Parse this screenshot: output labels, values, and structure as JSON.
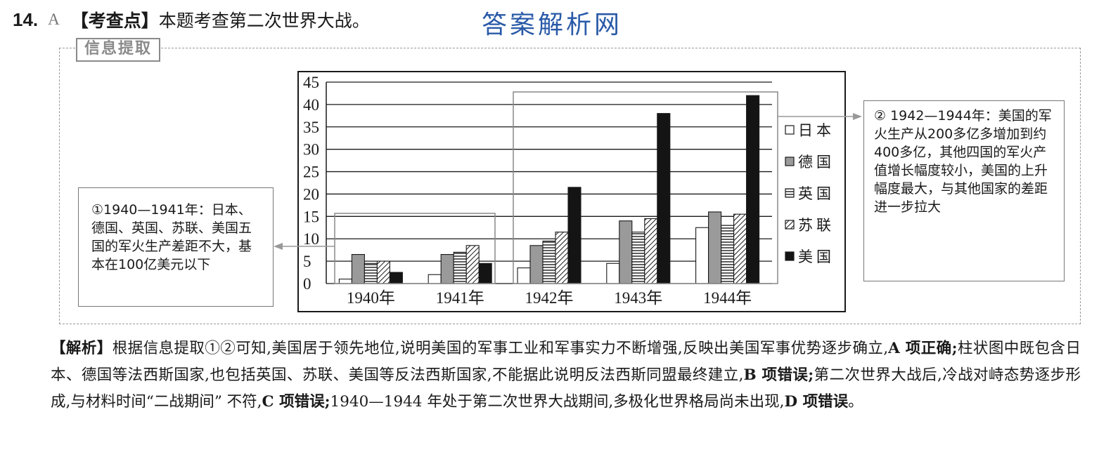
{
  "question": {
    "number": "14.",
    "answer": "A",
    "tag": "【考查点】",
    "text": "本题考查第二次世界大战。"
  },
  "watermark": "答案解析网",
  "info_tag": "信息提取",
  "note_left": "①1940—1941年：日本、德国、英国、苏联、美国五国的军火生产差距不大，基本在100亿美元以下",
  "note_right": "② 1942—1944年：美国的军火生产从200多亿多增加到约400多亿，其他四国的军火产值增长幅度较小，美国的上升幅度最大，与其他国家的差距进一步拉大",
  "chart_data": {
    "type": "bar",
    "categories": [
      "1940年",
      "1941年",
      "1942年",
      "1943年",
      "1944年"
    ],
    "ylim": [
      0,
      45
    ],
    "yticks": [
      0,
      5,
      10,
      15,
      20,
      25,
      30,
      35,
      40,
      45
    ],
    "grid": true,
    "legend_position": "right",
    "series": [
      {
        "name": "日本",
        "values": [
          1,
          2,
          3.5,
          4.5,
          12.5
        ],
        "pattern": "white"
      },
      {
        "name": "德国",
        "values": [
          6.5,
          6.5,
          8.5,
          14,
          16
        ],
        "pattern": "gray"
      },
      {
        "name": "英国",
        "values": [
          4.5,
          7,
          9.5,
          11.5,
          13
        ],
        "pattern": "hstripe"
      },
      {
        "name": "苏联",
        "values": [
          5,
          8.5,
          11.5,
          14.5,
          15.5
        ],
        "pattern": "dstripe"
      },
      {
        "name": "美国",
        "values": [
          2.5,
          4.5,
          21.5,
          38,
          42
        ],
        "pattern": "black"
      }
    ],
    "colors": {
      "gray": "#9a9a9a",
      "black": "#141414",
      "white": "#ffffff",
      "stroke": "#1a1a1a"
    }
  },
  "explanation": {
    "p1_tag": "【解析】",
    "p1": "根据信息提取①②可知,美国居于领先地位,说明美国的军事工业和军事实力不断增强,反映出美国军事优势逐步确立,",
    "a_label": "A 项正确;",
    "p2": "柱状图中既包含日本、德国等法西斯国家,也包括英国、苏联、美国等反法西斯国家,不能据此说明反法西斯同盟最终建立,",
    "b_label": "B 项错误;",
    "p3": "第二次世界大战后,冷战对峙态势逐步形成,与材料时间“二战期间” 不符,",
    "c_label": "C 项错误;",
    "p4": "1940—1944 年处于第二次世界大战期间,多极化世界格局尚未出现,",
    "d_label": "D 项错误",
    "end": "。"
  }
}
